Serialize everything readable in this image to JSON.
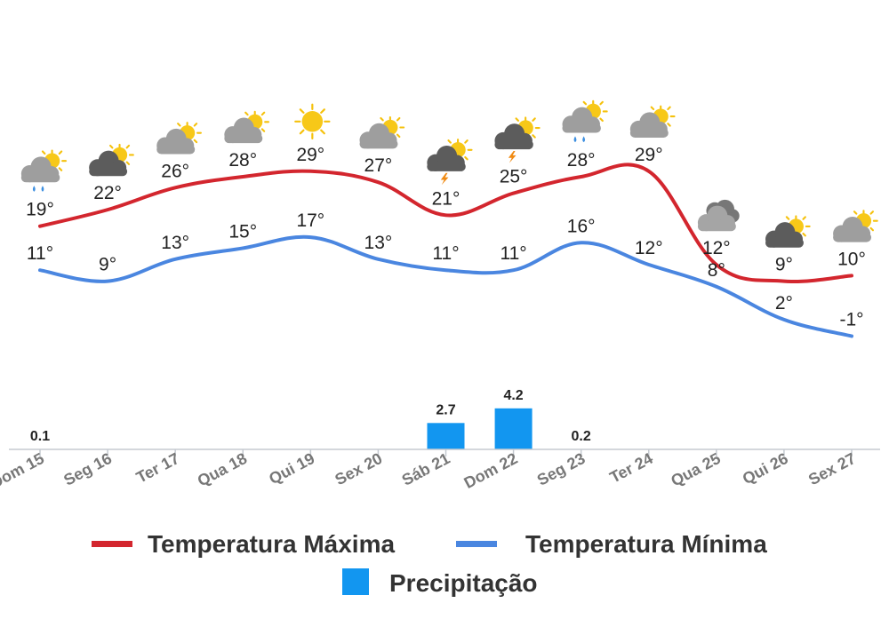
{
  "chart_data": {
    "type": "line",
    "title": "",
    "categories": [
      "Dom 15",
      "Seg 16",
      "Ter 17",
      "Qua 18",
      "Qui 19",
      "Sex 20",
      "Sáb 21",
      "Dom 22",
      "Seg 23",
      "Ter 24",
      "Qua 25",
      "Qui 26",
      "Sex 27"
    ],
    "weather_icons": [
      "rain-cloud-sun-icon",
      "dark-cloud-sun-icon",
      "cloud-sun-icon",
      "cloud-sun-icon",
      "sun-icon",
      "cloud-sun-icon",
      "storm-cloud-sun-icon",
      "storm-cloud-sun-icon",
      "rain-cloud-sun-icon",
      "cloud-sun-icon",
      "cloudy-icon",
      "dark-cloud-sun-icon",
      "cloud-sun-icon"
    ],
    "series": [
      {
        "name": "Temperatura Máxima",
        "color": "#d3262e",
        "values": [
          19,
          22,
          26,
          28,
          29,
          27,
          21,
          25,
          28,
          29,
          12,
          9,
          10
        ],
        "labels": [
          "19°",
          "22°",
          "26°",
          "28°",
          "29°",
          "27°",
          "21°",
          "25°",
          "28°",
          "29°",
          "12°",
          "9°",
          "10°"
        ]
      },
      {
        "name": "Temperatura Mínima",
        "color": "#4a86e0",
        "values": [
          11,
          9,
          13,
          15,
          17,
          13,
          11,
          11,
          16,
          12,
          8,
          2,
          -1
        ],
        "labels": [
          "11°",
          "9°",
          "13°",
          "15°",
          "17°",
          "13°",
          "11°",
          "11°",
          "16°",
          "12°",
          "8°",
          "2°",
          "-1°"
        ]
      }
    ],
    "precipitation": {
      "name": "Precipitação",
      "color": "#1296f0",
      "values": [
        0.1,
        0,
        0,
        0,
        0,
        0,
        2.7,
        4.2,
        0.2,
        0,
        0,
        0,
        0
      ],
      "labels": [
        "0.1",
        "",
        "",
        "",
        "",
        "",
        "2.7",
        "4.2",
        "0.2",
        "",
        "",
        "",
        ""
      ]
    },
    "legend": [
      "Temperatura Máxima",
      "Temperatura Mínima",
      "Precipitação"
    ]
  }
}
